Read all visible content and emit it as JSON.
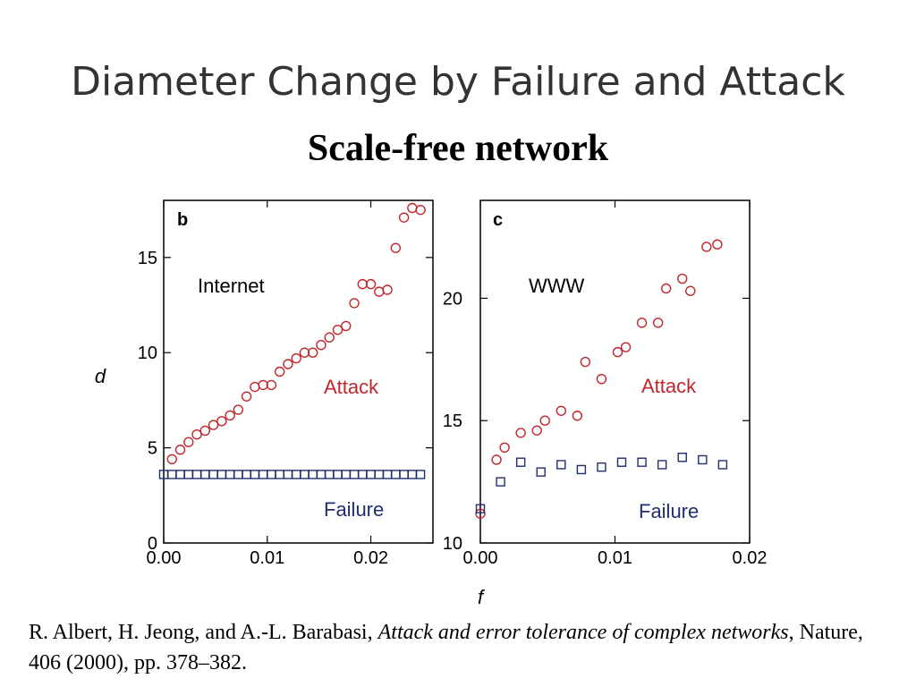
{
  "slide": {
    "title": "Diameter Change by Failure and Attack",
    "subtitle": "Scale-free network"
  },
  "citation": {
    "authors": "R. Albert, H. Jeong, and A.-L. Barabasi, ",
    "title": "Attack and error tolerance of complex networks",
    "rest": ", Nature, 406 (2000), pp. 378–382."
  },
  "colors": {
    "attack": "#c0262c",
    "failure": "#1f2f6e",
    "axis": "#000000"
  },
  "chart_data": [
    {
      "type": "scatter",
      "panel_label": "b",
      "annotation": "Internet",
      "ylabel": "d",
      "xlabel": "",
      "xlim": [
        0.0,
        0.026
      ],
      "ylim": [
        0,
        18
      ],
      "xticks": [
        "0.00",
        "0.01",
        "0.02"
      ],
      "xtick_values": [
        0.0,
        0.01,
        0.02
      ],
      "yticks": [
        "0",
        "5",
        "10",
        "15"
      ],
      "ytick_values": [
        0,
        5,
        10,
        15
      ],
      "yaxis_side": "left",
      "series": [
        {
          "name": "Attack",
          "marker": "circle",
          "color": "#c0262c",
          "points": [
            [
              0.0008,
              4.4
            ],
            [
              0.0016,
              4.9
            ],
            [
              0.0024,
              5.3
            ],
            [
              0.0032,
              5.7
            ],
            [
              0.004,
              5.9
            ],
            [
              0.0048,
              6.2
            ],
            [
              0.0056,
              6.4
            ],
            [
              0.0064,
              6.7
            ],
            [
              0.0072,
              7.0
            ],
            [
              0.008,
              7.7
            ],
            [
              0.0088,
              8.2
            ],
            [
              0.0096,
              8.3
            ],
            [
              0.0104,
              8.3
            ],
            [
              0.0112,
              9.0
            ],
            [
              0.012,
              9.4
            ],
            [
              0.0128,
              9.7
            ],
            [
              0.0136,
              10.0
            ],
            [
              0.0144,
              10.0
            ],
            [
              0.0152,
              10.4
            ],
            [
              0.016,
              10.8
            ],
            [
              0.0168,
              11.2
            ],
            [
              0.0176,
              11.4
            ],
            [
              0.0184,
              12.6
            ],
            [
              0.0192,
              13.6
            ],
            [
              0.02,
              13.6
            ],
            [
              0.0208,
              13.2
            ],
            [
              0.0216,
              13.3
            ],
            [
              0.0224,
              15.5
            ],
            [
              0.0232,
              17.1
            ],
            [
              0.024,
              17.6
            ],
            [
              0.0248,
              17.5
            ]
          ]
        },
        {
          "name": "Failure",
          "marker": "square",
          "color": "#1f2f6e",
          "points": [
            [
              0.0,
              3.6
            ],
            [
              0.0008,
              3.6
            ],
            [
              0.0016,
              3.6
            ],
            [
              0.0024,
              3.6
            ],
            [
              0.0032,
              3.6
            ],
            [
              0.004,
              3.6
            ],
            [
              0.0048,
              3.6
            ],
            [
              0.0056,
              3.6
            ],
            [
              0.0064,
              3.6
            ],
            [
              0.0072,
              3.6
            ],
            [
              0.008,
              3.6
            ],
            [
              0.0088,
              3.6
            ],
            [
              0.0096,
              3.6
            ],
            [
              0.0104,
              3.6
            ],
            [
              0.0112,
              3.6
            ],
            [
              0.012,
              3.6
            ],
            [
              0.0128,
              3.6
            ],
            [
              0.0136,
              3.6
            ],
            [
              0.0144,
              3.6
            ],
            [
              0.0152,
              3.6
            ],
            [
              0.016,
              3.6
            ],
            [
              0.0168,
              3.6
            ],
            [
              0.0176,
              3.6
            ],
            [
              0.0184,
              3.6
            ],
            [
              0.0192,
              3.6
            ],
            [
              0.02,
              3.6
            ],
            [
              0.0208,
              3.6
            ],
            [
              0.0216,
              3.6
            ],
            [
              0.0224,
              3.6
            ],
            [
              0.0232,
              3.6
            ],
            [
              0.024,
              3.6
            ],
            [
              0.0248,
              3.6
            ]
          ]
        }
      ]
    },
    {
      "type": "scatter",
      "panel_label": "c",
      "annotation": "WWW",
      "ylabel": "",
      "xlabel": "f",
      "xlim": [
        0.0,
        0.02
      ],
      "ylim": [
        10,
        24
      ],
      "xticks": [
        "0.00",
        "0.01",
        "0.02"
      ],
      "xtick_values": [
        0.0,
        0.01,
        0.02
      ],
      "yticks": [
        "10",
        "15",
        "20"
      ],
      "ytick_values": [
        10,
        15,
        20
      ],
      "yaxis_side": "left",
      "series": [
        {
          "name": "Attack",
          "marker": "circle",
          "color": "#c0262c",
          "points": [
            [
              0.0,
              11.2
            ],
            [
              0.0012,
              13.4
            ],
            [
              0.0018,
              13.9
            ],
            [
              0.003,
              14.5
            ],
            [
              0.0042,
              14.6
            ],
            [
              0.0048,
              15.0
            ],
            [
              0.006,
              15.4
            ],
            [
              0.0072,
              15.2
            ],
            [
              0.0078,
              17.4
            ],
            [
              0.009,
              16.7
            ],
            [
              0.0102,
              17.8
            ],
            [
              0.0108,
              18.0
            ],
            [
              0.012,
              19.0
            ],
            [
              0.0132,
              19.0
            ],
            [
              0.0138,
              20.4
            ],
            [
              0.015,
              20.8
            ],
            [
              0.0156,
              20.3
            ],
            [
              0.0168,
              22.1
            ],
            [
              0.0176,
              22.2
            ]
          ]
        },
        {
          "name": "Failure",
          "marker": "square",
          "color": "#1f2f6e",
          "points": [
            [
              0.0,
              11.4
            ],
            [
              0.0015,
              12.5
            ],
            [
              0.003,
              13.3
            ],
            [
              0.0045,
              12.9
            ],
            [
              0.006,
              13.2
            ],
            [
              0.0075,
              13.0
            ],
            [
              0.009,
              13.1
            ],
            [
              0.0105,
              13.3
            ],
            [
              0.012,
              13.3
            ],
            [
              0.0135,
              13.2
            ],
            [
              0.015,
              13.5
            ],
            [
              0.0165,
              13.4
            ],
            [
              0.018,
              13.2
            ]
          ]
        }
      ]
    }
  ]
}
